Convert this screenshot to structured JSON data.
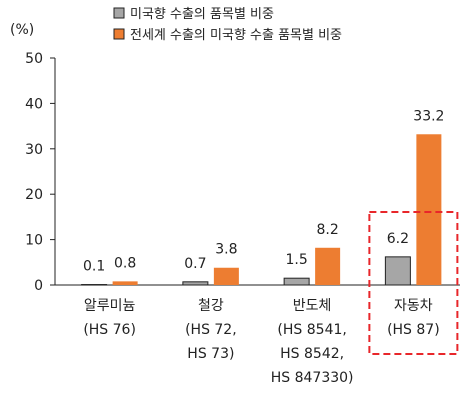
{
  "chart_data": {
    "type": "bar",
    "unit_label": "(%)",
    "categories": [
      [
        "알루미늄",
        "(HS 76)"
      ],
      [
        "철강",
        "(HS 72,",
        "HS 73)"
      ],
      [
        "반도체",
        "(HS 8541,",
        "HS 8542,",
        "HS 847330)"
      ],
      [
        "자동차",
        "(HS 87)"
      ]
    ],
    "series": [
      {
        "name": "미국향 수출의 품목별 비중",
        "values": [
          0.1,
          0.7,
          1.5,
          6.2
        ],
        "value_labels": [
          "0.1",
          "0.7",
          "1.5",
          "6.2"
        ],
        "color": "#a6a6a6"
      },
      {
        "name": "전세계 수출의 미국향 수출 품목별 비중",
        "values": [
          0.8,
          3.8,
          8.2,
          33.2
        ],
        "value_labels": [
          "0.8",
          "3.8",
          "8.2",
          "33.2"
        ],
        "color": "#ed7d31"
      }
    ],
    "yticks": [
      0,
      10,
      20,
      30,
      40,
      50
    ],
    "ylim": [
      0,
      50
    ],
    "grid": false,
    "legend_position": "top",
    "highlight_category_index": 3,
    "highlight_color": "#e8262a"
  }
}
